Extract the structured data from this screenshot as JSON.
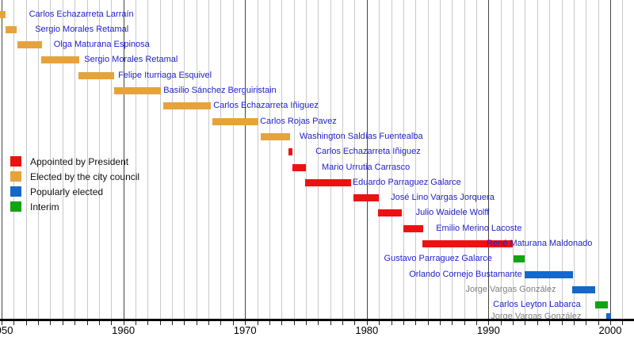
{
  "chart_data": {
    "type": "timeline",
    "description": "Timeline of mayors, colored by method of selection",
    "x_axis": {
      "range": [
        1950,
        2002
      ],
      "gridline_interval_years": 1,
      "decade_lines_dark": true,
      "tick_label_years": [
        1950,
        1960,
        1970,
        1980,
        1990,
        2000
      ],
      "tick_labels": [
        "1950",
        "1960",
        "1970",
        "1980",
        "1990",
        "2000"
      ]
    },
    "colors": {
      "president": "#ee1111",
      "council": "#e6a33c",
      "popular": "#1568c8",
      "interim": "#12a412",
      "link_text": "#2222cc",
      "plain_text": "#808080",
      "grid_light": "#c9c9c9",
      "grid_dark": "#454545",
      "axis": "#000000",
      "legend_text": "#111111"
    },
    "legend": {
      "position": "middle-left",
      "items": [
        {
          "label": "Appointed by President",
          "key": "president"
        },
        {
          "label": "Elected by the city council",
          "key": "council"
        },
        {
          "label": "Popularly elected",
          "key": "popular"
        },
        {
          "label": "Interim",
          "key": "interim"
        }
      ]
    },
    "rows": [
      {
        "name": "Carlos Echazarreta Larraín",
        "group": "council",
        "start": 1949.85,
        "end": 1950.3,
        "label_side": "right",
        "label_gap": 30,
        "link": true
      },
      {
        "name": "Sergio Morales Retamal",
        "group": "council",
        "start": 1950.35,
        "end": 1951.25,
        "label_side": "right",
        "label_gap": 23,
        "link": true
      },
      {
        "name": "Olga Maturana Espinosa",
        "group": "council",
        "start": 1951.3,
        "end": 1953.3,
        "label_side": "right",
        "label_gap": 15,
        "link": true
      },
      {
        "name": "Sergio Morales Retamal",
        "group": "council",
        "start": 1953.25,
        "end": 1956.4,
        "label_side": "right",
        "label_gap": 6,
        "link": true
      },
      {
        "name": "Felipe Iturriaga Esquivel",
        "group": "council",
        "start": 1956.3,
        "end": 1959.25,
        "label_side": "right",
        "label_gap": 5,
        "link": true
      },
      {
        "name": "Basilio Sánchez Berguiristain",
        "group": "council",
        "start": 1959.25,
        "end": 1963.1,
        "label_side": "right",
        "label_gap": 3,
        "link": true
      },
      {
        "name": "Carlos Echazarreta Iñiguez",
        "group": "council",
        "start": 1963.3,
        "end": 1967.2,
        "label_side": "right",
        "label_gap": 3,
        "link": true
      },
      {
        "name": "Carlos Rojas Pavez",
        "group": "council",
        "start": 1967.3,
        "end": 1971.1,
        "label_side": "right",
        "label_gap": 2,
        "link": true
      },
      {
        "name": "Washington Saldías Fuentealba",
        "group": "council",
        "start": 1971.3,
        "end": 1973.7,
        "label_side": "right",
        "label_gap": 12,
        "link": true
      },
      {
        "name": "Carlos Echazarreta Iñiguez",
        "group": "president",
        "start": 1973.6,
        "end": 1973.9,
        "label_side": "right",
        "label_gap": 29,
        "link": true
      },
      {
        "name": "Mario Urrutia Carrasco",
        "group": "president",
        "start": 1973.9,
        "end": 1975.0,
        "label_side": "right",
        "label_gap": 20,
        "link": true
      },
      {
        "name": "Eduardo Parraguez Galarce",
        "group": "president",
        "start": 1974.95,
        "end": 1978.7,
        "label_side": "right",
        "label_gap": 2,
        "link": true
      },
      {
        "name": "José Lino Vargas Jorquera",
        "group": "president",
        "start": 1978.9,
        "end": 1981.0,
        "label_side": "right",
        "label_gap": 15,
        "link": true
      },
      {
        "name": "Julio Waidele Wolff",
        "group": "president",
        "start": 1980.95,
        "end": 1982.85,
        "label_side": "right",
        "label_gap": 18,
        "link": true
      },
      {
        "name": "Emilio Merino Lacoste",
        "group": "president",
        "start": 1983.0,
        "end": 1984.65,
        "label_side": "right",
        "label_gap": 16,
        "link": true
      },
      {
        "name": "René Maturana Maldonado",
        "group": "president",
        "start": 1984.6,
        "end": 1992.0,
        "label_side": "right",
        "label_gap": -33,
        "link": true
      },
      {
        "name": "Gustavo Parraguez Galarce",
        "group": "interim",
        "start": 1992.05,
        "end": 1992.95,
        "label_side": "left",
        "label_gap": 27,
        "link": true
      },
      {
        "name": "Orlando Cornejo Bustamante",
        "group": "popular",
        "start": 1992.95,
        "end": 1996.95,
        "label_side": "left",
        "label_gap": 3,
        "link": true
      },
      {
        "name": "Jorge Vargas González",
        "group": "popular",
        "start": 1996.85,
        "end": 1998.75,
        "label_side": "left",
        "label_gap": 20,
        "link": false
      },
      {
        "name": "Carlos Leyton Labarca",
        "group": "interim",
        "start": 1998.75,
        "end": 1999.8,
        "label_side": "left",
        "label_gap": 18,
        "link": true
      },
      {
        "name": "Jorge Vargas González",
        "group": "popular",
        "start": 1999.7,
        "end": 2000.05,
        "label_side": "left",
        "label_gap": 32,
        "link": false
      }
    ]
  }
}
